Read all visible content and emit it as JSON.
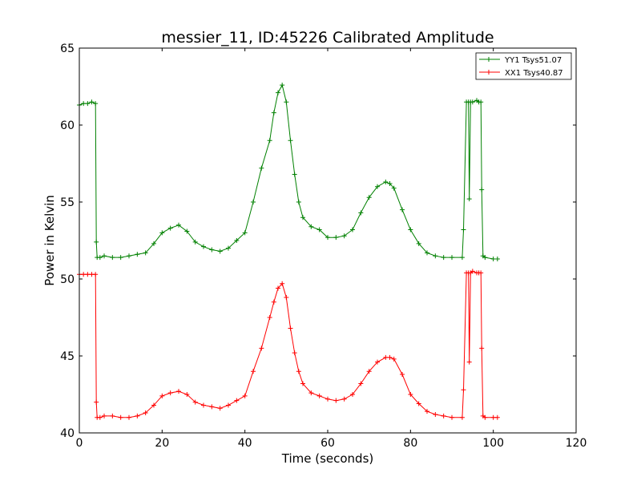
{
  "chart_data": {
    "type": "line",
    "title": "messier_11, ID:45226 Calibrated Amplitude",
    "xlabel": "Time (seconds)",
    "ylabel": "Power in Kelvin",
    "xlim": [
      0,
      120
    ],
    "ylim": [
      40,
      65
    ],
    "xticks": [
      0,
      20,
      40,
      60,
      80,
      100,
      120
    ],
    "yticks": [
      40,
      45,
      50,
      55,
      60,
      65
    ],
    "grid": false,
    "legend_position": "top-right",
    "marker": "+",
    "series": [
      {
        "name": "YY1 Tsys51.07",
        "color": "#008000",
        "x": [
          0,
          1,
          2,
          3,
          3.9,
          4.1,
          4.3,
          5,
          6,
          8,
          10,
          12,
          14,
          16,
          18,
          20,
          22,
          24,
          26,
          28,
          30,
          32,
          34,
          36,
          38,
          40,
          42,
          44,
          46,
          47,
          48,
          49,
          50,
          51,
          52,
          53,
          54,
          56,
          58,
          60,
          62,
          64,
          66,
          68,
          70,
          72,
          74,
          75,
          76,
          78,
          80,
          82,
          84,
          86,
          88,
          90,
          92.5,
          92.8,
          93.5,
          94,
          94.2,
          94.5,
          95,
          96,
          96.5,
          97,
          97.2,
          97.5,
          98,
          100,
          101
        ],
        "y": [
          61.3,
          61.4,
          61.4,
          61.5,
          61.4,
          52.4,
          51.4,
          51.4,
          51.5,
          51.4,
          51.4,
          51.5,
          51.6,
          51.7,
          52.3,
          53.0,
          53.3,
          53.5,
          53.1,
          52.4,
          52.1,
          51.9,
          51.8,
          52.0,
          52.5,
          53.0,
          55.0,
          57.2,
          59.0,
          60.8,
          62.1,
          62.6,
          61.5,
          59.0,
          56.8,
          55.0,
          54.0,
          53.4,
          53.2,
          52.7,
          52.7,
          52.8,
          53.2,
          54.3,
          55.3,
          56.0,
          56.3,
          56.2,
          55.9,
          54.5,
          53.2,
          52.3,
          51.7,
          51.5,
          51.4,
          51.4,
          51.4,
          53.2,
          61.5,
          61.5,
          55.2,
          61.5,
          61.5,
          61.6,
          61.5,
          61.5,
          55.8,
          51.5,
          51.4,
          51.3,
          51.3
        ]
      },
      {
        "name": "XX1 Tsys40.87",
        "color": "#ff0000",
        "x": [
          0,
          1,
          2,
          3,
          3.9,
          4.1,
          4.3,
          5,
          6,
          8,
          10,
          12,
          14,
          16,
          18,
          20,
          22,
          24,
          26,
          28,
          30,
          32,
          34,
          36,
          38,
          40,
          42,
          44,
          46,
          47,
          48,
          49,
          50,
          51,
          52,
          53,
          54,
          56,
          58,
          60,
          62,
          64,
          66,
          68,
          70,
          72,
          74,
          75,
          76,
          78,
          80,
          82,
          84,
          86,
          88,
          90,
          92.5,
          92.8,
          93.5,
          94,
          94.2,
          94.5,
          95,
          96,
          96.5,
          97,
          97.2,
          97.5,
          98,
          100,
          101
        ],
        "y": [
          50.3,
          50.3,
          50.3,
          50.3,
          50.3,
          42.0,
          41.0,
          41.0,
          41.1,
          41.1,
          41.0,
          41.0,
          41.1,
          41.3,
          41.8,
          42.4,
          42.6,
          42.7,
          42.5,
          42.0,
          41.8,
          41.7,
          41.6,
          41.8,
          42.1,
          42.4,
          44.0,
          45.5,
          47.5,
          48.5,
          49.4,
          49.7,
          48.8,
          46.8,
          45.2,
          44.0,
          43.2,
          42.6,
          42.4,
          42.2,
          42.1,
          42.2,
          42.5,
          43.2,
          44.0,
          44.6,
          44.9,
          44.9,
          44.8,
          43.8,
          42.5,
          41.9,
          41.4,
          41.2,
          41.1,
          41.0,
          41.0,
          42.8,
          50.4,
          50.4,
          44.6,
          50.4,
          50.5,
          50.4,
          50.4,
          50.4,
          45.5,
          41.1,
          41.0,
          41.0,
          41.0
        ]
      }
    ]
  }
}
